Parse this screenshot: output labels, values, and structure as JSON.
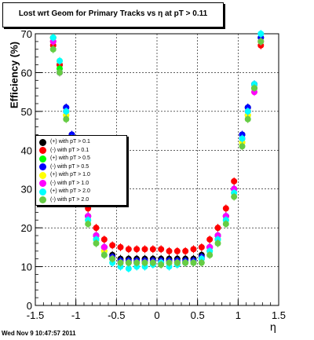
{
  "title": "Lost wrt Geom for Primary Tracks vs   η at pT > 0.11",
  "footer": "Wed Nov  9 10:47:57 2011",
  "chart_data": {
    "type": "scatter",
    "xlabel": "η",
    "ylabel": "Efficiency (%)",
    "xlim": [
      -1.5,
      1.5
    ],
    "ylim": [
      0,
      70
    ],
    "x_ticks": [
      "-1.5",
      "-1",
      "-0.5",
      "0",
      "0.5",
      "1",
      "1.5"
    ],
    "y_ticks": [
      "0",
      "10",
      "20",
      "30",
      "40",
      "50",
      "60",
      "70"
    ],
    "grid": true,
    "legend_position": "left-middle",
    "series": [
      {
        "name": "(+) with pT > 0.1",
        "color": "#000000",
        "x": [
          -1.28,
          -1.2,
          -1.12,
          -1.05,
          -0.95,
          -0.85,
          -0.75,
          -0.65,
          -0.55,
          -0.45,
          -0.35,
          -0.25,
          -0.15,
          -0.05,
          0.05,
          0.15,
          0.25,
          0.35,
          0.45,
          0.55,
          0.65,
          0.75,
          0.85,
          0.95,
          1.05,
          1.12,
          1.2,
          1.28
        ],
        "y": [
          69,
          62,
          51,
          44,
          30,
          23,
          18,
          15,
          13,
          12,
          12,
          12,
          12,
          12,
          12,
          12,
          12,
          12,
          12,
          13,
          15,
          18,
          23,
          30,
          44,
          51,
          57,
          69
        ]
      },
      {
        "name": "(-) with pT > 0.1",
        "color": "#ff0000",
        "x": [
          -1.28,
          -1.2,
          -1.12,
          -1.05,
          -0.95,
          -0.85,
          -0.75,
          -0.65,
          -0.55,
          -0.45,
          -0.35,
          -0.25,
          -0.15,
          -0.05,
          0.05,
          0.15,
          0.25,
          0.35,
          0.45,
          0.55,
          0.65,
          0.75,
          0.85,
          0.95,
          1.05,
          1.12,
          1.2,
          1.28
        ],
        "y": [
          67,
          62,
          50,
          43,
          32,
          25,
          20,
          17,
          15.5,
          15,
          14.5,
          14.5,
          14.5,
          14.5,
          14.5,
          14,
          14,
          14,
          14.5,
          15,
          17,
          20,
          25,
          32,
          43,
          50,
          56,
          67
        ]
      },
      {
        "name": "(+) with pT > 0.5",
        "color": "#00ff00",
        "x": [
          -1.28,
          -1.2,
          -1.12,
          -1.05,
          -0.95,
          -0.85,
          -0.75,
          -0.65,
          -0.55,
          -0.45,
          -0.35,
          -0.25,
          -0.15,
          -0.05,
          0.05,
          0.15,
          0.25,
          0.35,
          0.45,
          0.55,
          0.65,
          0.75,
          0.85,
          0.95,
          1.05,
          1.12,
          1.2,
          1.28
        ],
        "y": [
          69,
          61,
          49,
          42,
          29,
          22,
          17,
          14,
          12,
          11,
          11,
          11,
          11,
          11,
          11,
          11,
          11,
          11,
          11,
          12,
          14,
          17,
          22,
          29,
          42,
          49,
          56,
          69
        ]
      },
      {
        "name": "(-) with pT > 0.5",
        "color": "#0000ff",
        "x": [
          -1.28,
          -1.2,
          -1.12,
          -1.05,
          -0.95,
          -0.85,
          -0.75,
          -0.65,
          -0.55,
          -0.45,
          -0.35,
          -0.25,
          -0.15,
          -0.05,
          0.05,
          0.15,
          0.25,
          0.35,
          0.45,
          0.55,
          0.65,
          0.75,
          0.85,
          0.95,
          1.05,
          1.12,
          1.2,
          1.28
        ],
        "y": [
          68,
          60,
          51,
          44,
          30,
          23,
          18,
          15,
          12.5,
          11.5,
          11.5,
          11.5,
          11.5,
          11.5,
          11.5,
          11.5,
          11.5,
          11.5,
          11.5,
          12.5,
          15,
          18,
          23,
          30,
          44,
          51,
          57,
          69
        ]
      },
      {
        "name": "(+) with pT > 1.0",
        "color": "#ffff00",
        "x": [
          -1.28,
          -1.2,
          -1.12,
          -1.05,
          -0.95,
          -0.85,
          -0.75,
          -0.65,
          -0.55,
          -0.45,
          -0.35,
          -0.25,
          -0.15,
          -0.05,
          0.05,
          0.15,
          0.25,
          0.35,
          0.45,
          0.55,
          0.65,
          0.75,
          0.85,
          0.95,
          1.05,
          1.12,
          1.2,
          1.28
        ],
        "y": [
          68,
          63,
          49,
          42,
          29,
          22,
          17,
          14,
          12,
          11,
          11,
          11,
          11,
          11,
          11,
          11,
          11,
          11,
          11,
          12,
          14,
          17,
          22,
          29,
          42,
          49,
          55,
          68
        ]
      },
      {
        "name": "(-) with pT > 1.0",
        "color": "#ff00ff",
        "x": [
          -1.28,
          -1.2,
          -1.12,
          -1.05,
          -0.95,
          -0.85,
          -0.75,
          -0.65,
          -0.55,
          -0.45,
          -0.35,
          -0.25,
          -0.15,
          -0.05,
          0.05,
          0.15,
          0.25,
          0.35,
          0.45,
          0.55,
          0.65,
          0.75,
          0.85,
          0.95,
          1.05,
          1.12,
          1.2,
          1.28
        ],
        "y": [
          68,
          60,
          50,
          43,
          30,
          23,
          18,
          15,
          12,
          11,
          11,
          11,
          11,
          11,
          11,
          11,
          11,
          11,
          11,
          12,
          15,
          18,
          23,
          30,
          43,
          50,
          55,
          68
        ]
      },
      {
        "name": "(+) with pT > 2.0",
        "color": "#00ffff",
        "x": [
          -1.28,
          -1.2,
          -1.12,
          -1.05,
          -0.95,
          -0.85,
          -0.75,
          -0.65,
          -0.55,
          -0.45,
          -0.35,
          -0.25,
          -0.15,
          -0.05,
          0.05,
          0.15,
          0.25,
          0.35,
          0.45,
          0.55,
          0.65,
          0.75,
          0.85,
          0.95,
          1.05,
          1.12,
          1.2,
          1.28
        ],
        "y": [
          69,
          63,
          50,
          43,
          29,
          22,
          17,
          13,
          11,
          10,
          9.5,
          10,
          10,
          10.5,
          11,
          10,
          10.5,
          11,
          11,
          12,
          14,
          17,
          22,
          29,
          43,
          50,
          57,
          70
        ]
      },
      {
        "name": "(-) with pT > 2.0",
        "color": "#66cc44",
        "x": [
          -1.28,
          -1.2,
          -1.12,
          -1.05,
          -0.95,
          -0.85,
          -0.75,
          -0.65,
          -0.55,
          -0.45,
          -0.35,
          -0.25,
          -0.15,
          -0.05,
          0.05,
          0.15,
          0.25,
          0.35,
          0.45,
          0.55,
          0.65,
          0.75,
          0.85,
          0.95,
          1.05,
          1.12,
          1.2,
          1.28
        ],
        "y": [
          66,
          60,
          48,
          41,
          28,
          21,
          16,
          13,
          12,
          11,
          11,
          11,
          11,
          11,
          10.5,
          11,
          11,
          11,
          11,
          11,
          13,
          16,
          21,
          28,
          41,
          48,
          56,
          68
        ]
      }
    ]
  }
}
